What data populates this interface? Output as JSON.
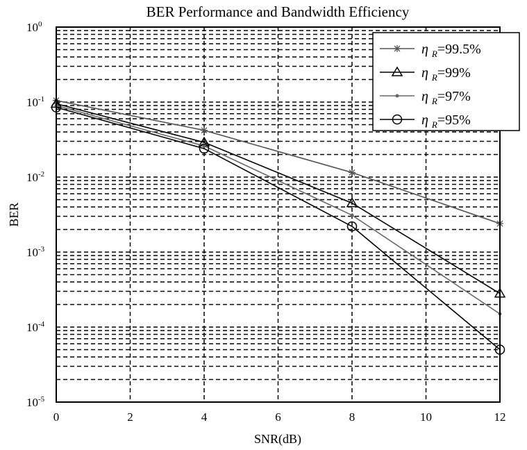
{
  "chart_data": {
    "type": "line",
    "title": "BER Performance and Bandwidth Efficiency",
    "xlabel": "SNR(dB)",
    "ylabel": "BER",
    "xlim": [
      0,
      12
    ],
    "ylim": [
      1e-05,
      1
    ],
    "yscale": "log",
    "grid": true,
    "legend_position": "top-right",
    "x_ticks": [
      "0",
      "2",
      "4",
      "6",
      "8",
      "10",
      "12"
    ],
    "y_ticks": [
      {
        "base": "10",
        "exp": "0"
      },
      {
        "base": "10",
        "exp": "-1"
      },
      {
        "base": "10",
        "exp": "-2"
      },
      {
        "base": "10",
        "exp": "-3"
      },
      {
        "base": "10",
        "exp": "-4"
      },
      {
        "base": "10",
        "exp": "-5"
      }
    ],
    "x": [
      0,
      4,
      8,
      12
    ],
    "series": [
      {
        "name": "η R=99.5%",
        "symbol": "η",
        "sub": "R",
        "value": "=99.5%",
        "marker": "star",
        "color": "#555555",
        "values": [
          0.105,
          0.042,
          0.0115,
          0.0024
        ]
      },
      {
        "name": "η R=99%",
        "symbol": "η",
        "sub": "R",
        "value": "=99%",
        "marker": "triangle",
        "color": "#000000",
        "values": [
          0.095,
          0.029,
          0.0045,
          0.00028
        ]
      },
      {
        "name": "η R=97%",
        "symbol": "η",
        "sub": "R",
        "value": "=97%",
        "marker": "dot",
        "color": "#666666",
        "values": [
          0.09,
          0.026,
          0.0031,
          0.00015
        ]
      },
      {
        "name": "η R=95%",
        "symbol": "η",
        "sub": "R",
        "value": "=95%",
        "marker": "circle",
        "color": "#000000",
        "values": [
          0.085,
          0.024,
          0.0022,
          5e-05
        ]
      }
    ]
  }
}
